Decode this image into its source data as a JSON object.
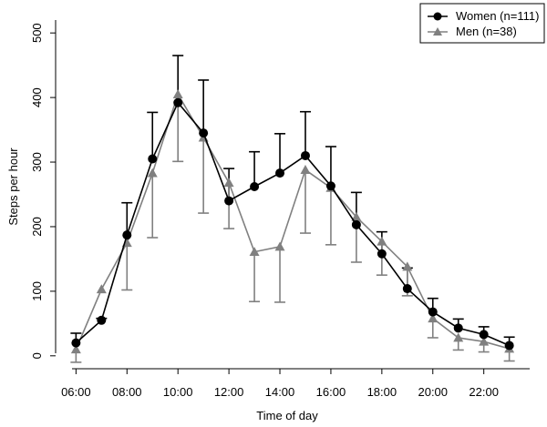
{
  "chart_data": {
    "type": "line",
    "xlabel": "Time of day",
    "ylabel": "Steps per hour",
    "x": [
      6,
      7,
      8,
      9,
      10,
      11,
      12,
      13,
      14,
      15,
      16,
      17,
      18,
      19,
      20,
      21,
      22,
      23
    ],
    "xlim": [
      5.2,
      23.8
    ],
    "ylim": [
      -20,
      520
    ],
    "x_ticks": [
      6,
      8,
      10,
      12,
      14,
      16,
      18,
      20,
      22
    ],
    "x_tick_labels": [
      "06:00",
      "08:00",
      "10:00",
      "12:00",
      "14:00",
      "16:00",
      "18:00",
      "20:00",
      "22:00"
    ],
    "y_ticks": [
      0,
      100,
      200,
      300,
      400,
      500
    ],
    "y_tick_labels": [
      "0",
      "100",
      "200",
      "300",
      "400",
      "500"
    ],
    "grid": false,
    "legend_position": "top-right",
    "series": [
      {
        "name": "Women (n=111)",
        "marker": "circle",
        "color": "#000000",
        "values": [
          20,
          55,
          187,
          305,
          392,
          345,
          240,
          262,
          283,
          310,
          263,
          203,
          158,
          104,
          68,
          43,
          33,
          16
        ],
        "err_upper": [
          35,
          58,
          237,
          377,
          465,
          427,
          290,
          316,
          344,
          378,
          324,
          253,
          192,
          136,
          89,
          57,
          45,
          29
        ],
        "err_lower": null
      },
      {
        "name": "Men (n=38)",
        "marker": "triangle",
        "color": "#808080",
        "values": [
          10,
          103,
          175,
          283,
          405,
          338,
          268,
          161,
          169,
          288,
          260,
          215,
          177,
          138,
          58,
          28,
          22,
          11
        ],
        "err_upper": null,
        "err_lower": [
          -10,
          null,
          102,
          183,
          301,
          221,
          197,
          84,
          83,
          190,
          172,
          145,
          125,
          93,
          28,
          9,
          6,
          -8
        ]
      }
    ]
  }
}
